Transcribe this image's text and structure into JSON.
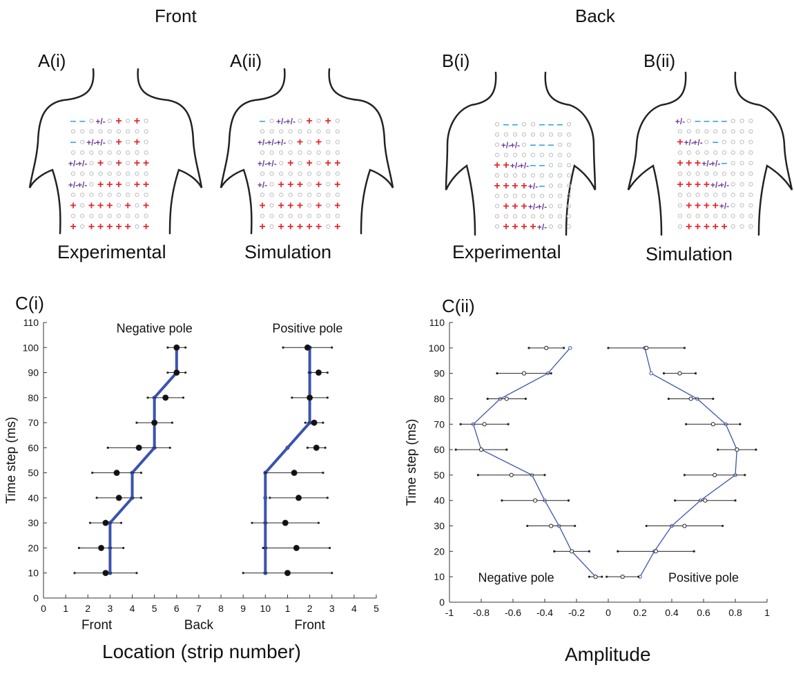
{
  "panels_top": {
    "front_header": "Front",
    "back_header": "Back",
    "panels": [
      {
        "label": "A(i)",
        "caption": "Experimental"
      },
      {
        "label": "A(ii)",
        "caption": "Simulation"
      },
      {
        "label": "B(i)",
        "caption": "Experimental"
      },
      {
        "label": "B(ii)",
        "caption": "Simulation"
      }
    ],
    "grids": [
      [
        [
          "-",
          "-",
          "o",
          "+/-",
          "o",
          "+",
          "o",
          "+",
          "o"
        ],
        [
          "o",
          "o",
          "o",
          "o",
          "o",
          "o",
          "o",
          "o",
          "o"
        ],
        [
          "-",
          "o",
          "+/-",
          "+/-",
          "o",
          "+",
          "o",
          "+",
          "o"
        ],
        [
          "o",
          "o",
          "o",
          "o",
          "o",
          "o",
          "o",
          "o",
          "o"
        ],
        [
          "+/-",
          "+/-",
          "o",
          "+",
          "o",
          "+",
          "o",
          "+",
          "+"
        ],
        [
          "o",
          "o",
          "o",
          "o",
          "o",
          "o",
          "o",
          "o",
          "o"
        ],
        [
          "+/-",
          "+/-",
          "o",
          "+",
          "+",
          "+",
          "o",
          "+",
          "+"
        ],
        [
          "o",
          "o",
          "o",
          "o",
          "o",
          "o",
          "o",
          "o",
          "o"
        ],
        [
          "+",
          "o",
          "+",
          "+",
          "+",
          "o",
          "+",
          "o",
          "+"
        ],
        [
          "o",
          "o",
          "o",
          "o",
          "o",
          "o",
          "o",
          "o",
          "o"
        ],
        [
          "+",
          "o",
          "+",
          "+",
          "+",
          "+",
          "+",
          "o",
          "+"
        ]
      ],
      [
        [
          "-",
          "o",
          "+/-",
          "+/-",
          "o",
          "+",
          "o",
          "+",
          "o"
        ],
        [
          "o",
          "o",
          "o",
          "o",
          "o",
          "o",
          "o",
          "o",
          "o"
        ],
        [
          "+/-",
          "+/-",
          "+/-",
          "o",
          "+",
          "o",
          "+",
          "o",
          "o"
        ],
        [
          "o",
          "o",
          "o",
          "o",
          "o",
          "o",
          "o",
          "o",
          "o"
        ],
        [
          "+/-",
          "+/-",
          "o",
          "+",
          "o",
          "+",
          "o",
          "+",
          "+"
        ],
        [
          "o",
          "o",
          "o",
          "o",
          "o",
          "o",
          "o",
          "o",
          "o"
        ],
        [
          "+/-",
          "o",
          "+",
          "+",
          "+",
          "o",
          "+",
          "o",
          "+"
        ],
        [
          "o",
          "o",
          "o",
          "o",
          "o",
          "o",
          "o",
          "o",
          "o"
        ],
        [
          "+",
          "o",
          "+",
          "+",
          "+",
          "o",
          "+",
          "o",
          "+"
        ],
        [
          "o",
          "o",
          "o",
          "o",
          "o",
          "o",
          "o",
          "o",
          "o"
        ],
        [
          "+",
          "o",
          "+",
          "+",
          "+",
          "+",
          "+",
          "o",
          "+"
        ]
      ],
      [
        [
          "o",
          "-",
          "-",
          "o",
          "o",
          "-",
          "-",
          "-",
          "o"
        ],
        [
          "o",
          "o",
          "o",
          "o",
          "o",
          "o",
          "o",
          "o",
          "o"
        ],
        [
          "o",
          "+/-",
          "+/-",
          "o",
          "-",
          "-",
          "-",
          "o",
          "o"
        ],
        [
          "o",
          "o",
          "o",
          "o",
          "o",
          "o",
          "o",
          "o",
          "o"
        ],
        [
          "+",
          "+",
          "+/-",
          "+/-",
          "-",
          "-",
          "o",
          "o",
          "o"
        ],
        [
          "o",
          "o",
          "o",
          "o",
          "o",
          "o",
          "o",
          "o",
          "o"
        ],
        [
          "+",
          "+",
          "+",
          "+",
          "+/-",
          "-",
          "o",
          "o",
          "o"
        ],
        [
          "o",
          "o",
          "o",
          "o",
          "o",
          "o",
          "o",
          "o",
          "o"
        ],
        [
          "o",
          "+",
          "+",
          "+",
          "+/-",
          "+/-",
          "o",
          "o",
          "o"
        ],
        [
          "o",
          "o",
          "o",
          "o",
          "o",
          "o",
          "o",
          "o",
          "o"
        ],
        [
          "o",
          "+",
          "+",
          "+",
          "+",
          "+/-",
          "o",
          "o",
          "o"
        ]
      ],
      [
        [
          "+/-",
          "o",
          "-",
          "-",
          "-",
          "-",
          "o",
          "o",
          "o"
        ],
        [
          "o",
          "o",
          "o",
          "o",
          "o",
          "o",
          "o",
          "o",
          "o"
        ],
        [
          "+",
          "+/-",
          "+/-",
          "o",
          "-",
          "o",
          "o",
          "o",
          "o"
        ],
        [
          "o",
          "o",
          "o",
          "o",
          "o",
          "o",
          "o",
          "o",
          "o"
        ],
        [
          "+",
          "+",
          "+",
          "+/-",
          "+/-",
          "-",
          "o",
          "o",
          "o"
        ],
        [
          "o",
          "o",
          "o",
          "o",
          "o",
          "o",
          "o",
          "o",
          "o"
        ],
        [
          "+",
          "+",
          "+",
          "+",
          "+/-",
          "+/-",
          "o",
          "o",
          "o"
        ],
        [
          "o",
          "o",
          "o",
          "o",
          "o",
          "o",
          "o",
          "o",
          "o"
        ],
        [
          "o",
          "+",
          "+",
          "+",
          "+",
          "+/-",
          "o",
          "o",
          "o"
        ],
        [
          "o",
          "o",
          "o",
          "o",
          "o",
          "o",
          "o",
          "o",
          "o"
        ],
        [
          "o",
          "+",
          "+",
          "+",
          "+",
          "+",
          "o",
          "o",
          "o"
        ]
      ]
    ],
    "colors": {
      "plus": "#e8262a",
      "minus": "#2aa4dc",
      "plusminus": "#6a3d9a",
      "open": "#bcbcbc"
    }
  },
  "chart_data": [
    {
      "panel_label": "C(i)",
      "type": "line",
      "xlabel": "Location (strip number)",
      "ylabel": "Time step (ms)",
      "ylim": [
        0,
        110
      ],
      "yticks": [
        0,
        10,
        20,
        30,
        40,
        50,
        60,
        70,
        80,
        90,
        100,
        110
      ],
      "xlim": [
        0,
        15
      ],
      "xtick_labels": [
        "0",
        "1",
        "2",
        "3",
        "4",
        "5",
        "6",
        "7",
        "8",
        "9",
        "10",
        "1",
        "2",
        "3",
        "4",
        "5"
      ],
      "x_group_labels": [
        "Front",
        "Back",
        "Front"
      ],
      "annotations": [
        "Negative pole",
        "Positive pole"
      ],
      "series": [
        {
          "name": "Negative pole",
          "y": [
            10,
            20,
            30,
            40,
            50,
            60,
            70,
            80,
            90,
            100
          ],
          "model_x": [
            3,
            3,
            3,
            4,
            4,
            5,
            5,
            5,
            6,
            6
          ],
          "exp_mean_x": [
            2.8,
            2.6,
            2.8,
            3.4,
            3.3,
            4.3,
            5.0,
            5.5,
            6.0,
            6.0
          ],
          "exp_err": [
            1.4,
            1.0,
            0.7,
            1.0,
            1.1,
            1.4,
            0.8,
            0.8,
            0.4,
            0.4
          ]
        },
        {
          "name": "Positive pole",
          "y": [
            10,
            20,
            30,
            40,
            50,
            60,
            70,
            80,
            90,
            100
          ],
          "model_x": [
            10,
            10,
            10,
            10,
            10,
            11,
            12,
            12,
            12,
            12
          ],
          "exp_mean_x": [
            11.0,
            11.4,
            10.9,
            11.5,
            11.3,
            12.3,
            12.2,
            12.0,
            12.4,
            11.9
          ],
          "exp_err": [
            2.0,
            1.5,
            1.5,
            1.3,
            1.3,
            0.4,
            0.4,
            0.8,
            0.4,
            1.1
          ]
        }
      ]
    },
    {
      "panel_label": "C(ii)",
      "type": "line",
      "xlabel": "Amplitude",
      "ylabel": "Time step (ms)",
      "ylim": [
        0,
        110
      ],
      "yticks": [
        0,
        10,
        20,
        30,
        40,
        50,
        60,
        70,
        80,
        90,
        100,
        110
      ],
      "xlim": [
        -1,
        1
      ],
      "xticks": [
        -1,
        -0.8,
        -0.6,
        -0.4,
        -0.2,
        0,
        0.2,
        0.4,
        0.6,
        0.8,
        1
      ],
      "annotations": [
        "Negative pole",
        "Positive pole"
      ],
      "series": [
        {
          "name": "Negative pole",
          "y": [
            10,
            20,
            30,
            40,
            50,
            60,
            70,
            80,
            90,
            100
          ],
          "model_x": [
            -0.08,
            -0.23,
            -0.31,
            -0.4,
            -0.48,
            -0.8,
            -0.85,
            -0.68,
            -0.38,
            -0.24
          ],
          "exp_mean_x": [
            -0.08,
            -0.23,
            -0.36,
            -0.46,
            -0.61,
            -0.8,
            -0.78,
            -0.64,
            -0.53,
            -0.39
          ],
          "exp_err": [
            0.04,
            0.11,
            0.15,
            0.21,
            0.21,
            0.16,
            0.15,
            0.12,
            0.17,
            0.11
          ]
        },
        {
          "name": "Positive pole",
          "y": [
            10,
            20,
            30,
            40,
            50,
            60,
            70,
            80,
            90,
            100
          ],
          "model_x": [
            0.2,
            0.29,
            0.4,
            0.58,
            0.8,
            0.81,
            0.74,
            0.56,
            0.27,
            0.23
          ],
          "exp_mean_x": [
            0.09,
            0.3,
            0.48,
            0.61,
            0.67,
            0.81,
            0.66,
            0.52,
            0.45,
            0.24
          ],
          "exp_err": [
            0.1,
            0.24,
            0.24,
            0.19,
            0.19,
            0.12,
            0.17,
            0.14,
            0.1,
            0.24
          ]
        }
      ]
    }
  ]
}
